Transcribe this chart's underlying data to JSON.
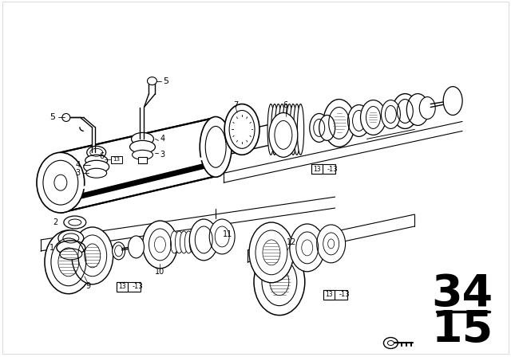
{
  "bg_color": "#ffffff",
  "line_color": "#000000",
  "fig_width": 6.4,
  "fig_height": 4.48,
  "dpi": 100,
  "page_num_top": "34",
  "page_num_bot": "15"
}
